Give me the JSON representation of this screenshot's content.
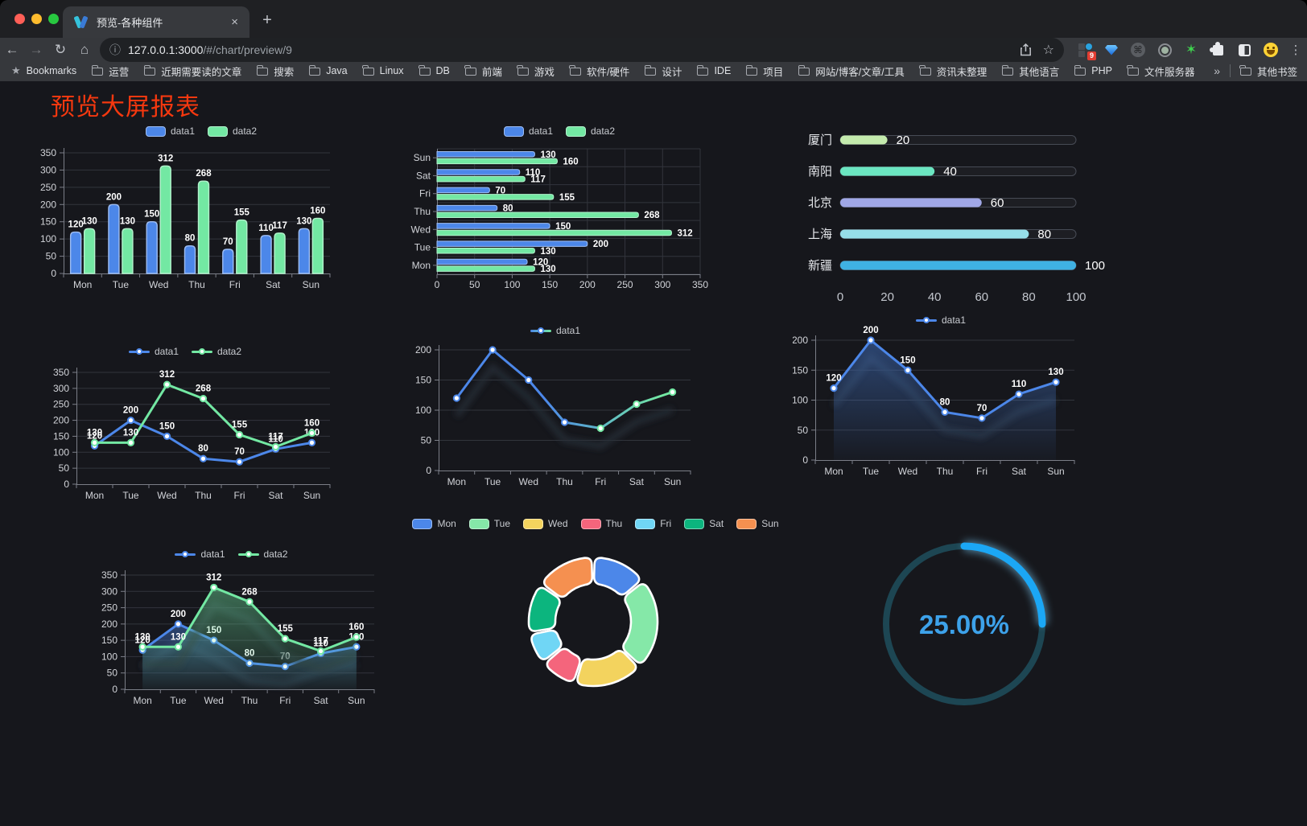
{
  "browser": {
    "tab": {
      "title": "预览-各种组件",
      "close_label": "×",
      "new_tab_label": "+"
    },
    "toolbar": {
      "url_host": "127.0.0.1:3000",
      "url_path": "/#/chart/preview/9",
      "extension_badge": "9"
    },
    "bookmarks": {
      "label": "Bookmarks",
      "folders": [
        "运营",
        "近期需要读的文章",
        "搜索",
        "Java",
        "Linux",
        "DB",
        "前端",
        "游戏",
        "软件/硬件",
        "设计",
        "IDE",
        "项目",
        "网站/博客/文章/工具",
        "资讯未整理",
        "其他语言",
        "PHP",
        "文件服务器"
      ],
      "overflow": "»",
      "other": "其他书签"
    }
  },
  "page": {
    "title": "预览大屏报表"
  },
  "theme": {
    "page_bg": "#16171c",
    "axis": "#7b7e87",
    "grid": "#32353c",
    "text": "#d2d4d9",
    "value_label": "#ffffff",
    "accent_blue": "#4c87e9",
    "accent_green": "#73e8a3",
    "title_red": "#f5380f"
  },
  "chart_data": [
    {
      "id": "bar-vertical",
      "type": "bar",
      "legend_position": "top",
      "categories": [
        "Mon",
        "Tue",
        "Wed",
        "Thu",
        "Fri",
        "Sat",
        "Sun"
      ],
      "series": [
        {
          "name": "data1",
          "color": "#4c87e9",
          "values": [
            120,
            200,
            150,
            80,
            70,
            110,
            130
          ]
        },
        {
          "name": "data2",
          "color": "#73e8a3",
          "values": [
            130,
            130,
            312,
            268,
            155,
            117,
            160
          ]
        }
      ],
      "ylim": [
        0,
        350
      ],
      "ytick_step": 50,
      "grid": true
    },
    {
      "id": "bar-horizontal",
      "type": "bar-horizontal",
      "legend_position": "top",
      "categories": [
        "Mon",
        "Tue",
        "Wed",
        "Thu",
        "Fri",
        "Sat",
        "Sun"
      ],
      "series": [
        {
          "name": "data1",
          "color": "#4c87e9",
          "values": [
            120,
            200,
            150,
            80,
            70,
            110,
            130
          ]
        },
        {
          "name": "data2",
          "color": "#73e8a3",
          "values": [
            130,
            130,
            312,
            268,
            155,
            117,
            160
          ]
        }
      ],
      "xlim": [
        0,
        350
      ],
      "xtick_step": 50,
      "grid": true
    },
    {
      "id": "capsule",
      "type": "capsule-bar",
      "categories": [
        "厦门",
        "南阳",
        "北京",
        "上海",
        "新疆"
      ],
      "values": [
        20,
        40,
        60,
        80,
        100
      ],
      "colors": [
        "#c4ebad",
        "#6be6c1",
        "#a0a7e6",
        "#96dee8",
        "#3fb1e3"
      ],
      "xlim": [
        0,
        100
      ],
      "xticks": [
        0,
        20,
        40,
        60,
        80,
        100
      ]
    },
    {
      "id": "line-basic",
      "type": "line",
      "legend_position": "top",
      "categories": [
        "Mon",
        "Tue",
        "Wed",
        "Thu",
        "Fri",
        "Sat",
        "Sun"
      ],
      "series": [
        {
          "name": "data1",
          "color": "#4c87e9",
          "values": [
            120,
            200,
            150,
            80,
            70,
            110,
            130
          ]
        },
        {
          "name": "data2",
          "color": "#73e8a3",
          "values": [
            130,
            130,
            312,
            268,
            155,
            117,
            160
          ]
        }
      ],
      "ylim": [
        0,
        350
      ],
      "ytick_step": 50,
      "show_point_labels": true
    },
    {
      "id": "line-gradient",
      "type": "line",
      "legend_position": "top",
      "categories": [
        "Mon",
        "Tue",
        "Wed",
        "Thu",
        "Fri",
        "Sat",
        "Sun"
      ],
      "series": [
        {
          "name": "data1",
          "gradient": [
            "#4c87e9",
            "#73e8a3"
          ],
          "values": [
            120,
            200,
            150,
            80,
            70,
            110,
            130
          ]
        }
      ],
      "ylim": [
        0,
        200
      ],
      "ytick_step": 50,
      "show_point_labels": false
    },
    {
      "id": "line-area-single",
      "type": "area",
      "legend_position": "top",
      "categories": [
        "Mon",
        "Tue",
        "Wed",
        "Thu",
        "Fri",
        "Sat",
        "Sun"
      ],
      "series": [
        {
          "name": "data1",
          "color": "#4c87e9",
          "values": [
            120,
            200,
            150,
            80,
            70,
            110,
            130
          ]
        }
      ],
      "ylim": [
        0,
        200
      ],
      "ytick_step": 50,
      "show_point_labels": true
    },
    {
      "id": "line-area-double",
      "type": "area",
      "legend_position": "top",
      "categories": [
        "Mon",
        "Tue",
        "Wed",
        "Thu",
        "Fri",
        "Sat",
        "Sun"
      ],
      "series": [
        {
          "name": "data1",
          "color": "#4c87e9",
          "values": [
            120,
            200,
            150,
            80,
            70,
            110,
            130
          ]
        },
        {
          "name": "data2",
          "color": "#73e8a3",
          "values": [
            130,
            130,
            312,
            268,
            155,
            117,
            160
          ]
        }
      ],
      "ylim": [
        0,
        350
      ],
      "ytick_step": 50,
      "show_point_labels": true
    },
    {
      "id": "donut",
      "type": "pie",
      "donut": true,
      "legend_position": "top",
      "categories": [
        "Mon",
        "Tue",
        "Wed",
        "Thu",
        "Fri",
        "Sat",
        "Sun"
      ],
      "values": [
        120,
        200,
        150,
        80,
        70,
        110,
        130
      ],
      "colors": [
        "#4c87e9",
        "#85e8a8",
        "#f3d35e",
        "#f4657c",
        "#70d6f5",
        "#0cb57e",
        "#f59050"
      ]
    },
    {
      "id": "progress-circle",
      "type": "gauge",
      "value_percent": 25,
      "display": "25.00%",
      "color": "#1ba7f5",
      "track_color": "#1d4653",
      "text_color": "#3da2ea"
    }
  ]
}
